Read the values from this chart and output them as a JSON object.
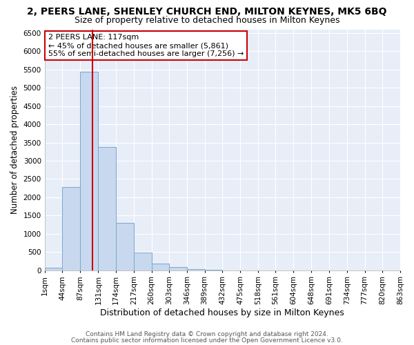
{
  "title": "2, PEERS LANE, SHENLEY CHURCH END, MILTON KEYNES, MK5 6BQ",
  "subtitle": "Size of property relative to detached houses in Milton Keynes",
  "xlabel": "Distribution of detached houses by size in Milton Keynes",
  "ylabel": "Number of detached properties",
  "bar_color": "#c8d8ee",
  "bar_edge_color": "#7aa8cc",
  "plot_bg_color": "#e8eef8",
  "fig_bg_color": "#ffffff",
  "grid_color": "#ffffff",
  "bin_edges": [
    1,
    44,
    87,
    131,
    174,
    217,
    260,
    303,
    346,
    389,
    432,
    475,
    518,
    561,
    604,
    648,
    691,
    734,
    777,
    820,
    863
  ],
  "bar_heights": [
    70,
    2280,
    5430,
    3380,
    1300,
    480,
    185,
    80,
    30,
    5,
    2,
    1,
    0,
    0,
    0,
    0,
    0,
    0,
    0,
    0
  ],
  "tick_labels": [
    "1sqm",
    "44sqm",
    "87sqm",
    "131sqm",
    "174sqm",
    "217sqm",
    "260sqm",
    "303sqm",
    "346sqm",
    "389sqm",
    "432sqm",
    "475sqm",
    "518sqm",
    "561sqm",
    "604sqm",
    "648sqm",
    "691sqm",
    "734sqm",
    "777sqm",
    "820sqm",
    "863sqm"
  ],
  "vline_x": 117,
  "vline_color": "#cc0000",
  "ylim": [
    0,
    6600
  ],
  "yticks": [
    0,
    500,
    1000,
    1500,
    2000,
    2500,
    3000,
    3500,
    4000,
    4500,
    5000,
    5500,
    6000,
    6500
  ],
  "annotation_title": "2 PEERS LANE: 117sqm",
  "annotation_line1": "← 45% of detached houses are smaller (5,861)",
  "annotation_line2": "55% of semi-detached houses are larger (7,256) →",
  "annotation_box_color": "#ffffff",
  "annotation_box_edge": "#cc0000",
  "footer_line1": "Contains HM Land Registry data © Crown copyright and database right 2024.",
  "footer_line2": "Contains public sector information licensed under the Open Government Licence v3.0.",
  "title_fontsize": 10,
  "subtitle_fontsize": 9,
  "xlabel_fontsize": 9,
  "ylabel_fontsize": 8.5,
  "tick_fontsize": 7.5,
  "annotation_fontsize": 8,
  "footer_fontsize": 6.5
}
